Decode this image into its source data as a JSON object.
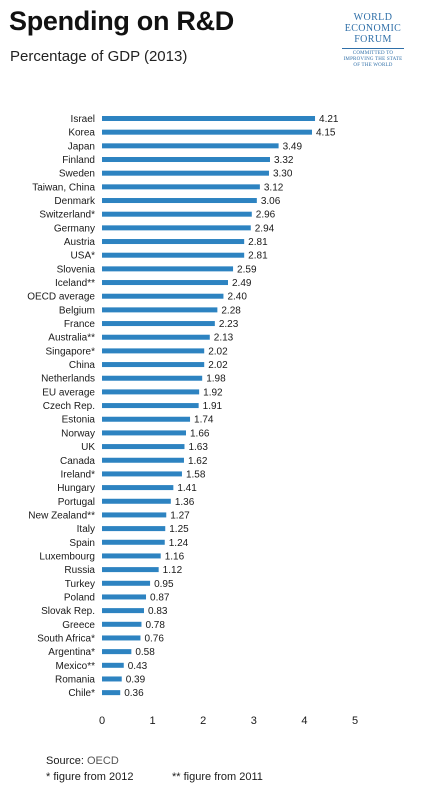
{
  "header": {
    "title": "Spending on R&D",
    "subtitle": "Percentage of GDP (2013)"
  },
  "logo": {
    "line1": "WORLD",
    "line2": "ECONOMIC",
    "line3": "FORUM",
    "tag1": "COMMITTED TO",
    "tag2": "IMPROVING THE STATE",
    "tag3": "OF THE WORLD"
  },
  "colors": {
    "bar": "#2d83c1",
    "text": "#1a1a1a"
  },
  "chart_data": {
    "type": "bar",
    "orientation": "horizontal",
    "title": "Spending on R&D",
    "subtitle": "Percentage of GDP (2013)",
    "xlim": [
      0,
      5
    ],
    "xticks": [
      0,
      1,
      2,
      3,
      4,
      5
    ],
    "grid": false,
    "categories": [
      "Israel",
      "Korea",
      "Japan",
      "Finland",
      "Sweden",
      "Taiwan, China",
      "Denmark",
      "Switzerland*",
      "Germany",
      "Austria",
      "USA*",
      "Slovenia",
      "Iceland**",
      "OECD average",
      "Belgium",
      "France",
      "Australia**",
      "Singapore*",
      "China",
      "Netherlands",
      "EU average",
      "Czech Rep.",
      "Estonia",
      "Norway",
      "UK",
      "Canada",
      "Ireland*",
      "Hungary",
      "Portugal",
      "New Zealand**",
      "Italy",
      "Spain",
      "Luxembourg",
      "Russia",
      "Turkey",
      "Poland",
      "Slovak Rep.",
      "Greece",
      "South Africa*",
      "Argentina*",
      "Mexico**",
      "Romania",
      "Chile*"
    ],
    "values": [
      4.21,
      4.15,
      3.49,
      3.32,
      3.3,
      3.12,
      3.06,
      2.96,
      2.94,
      2.81,
      2.81,
      2.59,
      2.49,
      2.4,
      2.28,
      2.23,
      2.13,
      2.02,
      2.02,
      1.98,
      1.92,
      1.91,
      1.74,
      1.66,
      1.63,
      1.62,
      1.58,
      1.41,
      1.36,
      1.27,
      1.25,
      1.24,
      1.16,
      1.12,
      0.95,
      0.87,
      0.83,
      0.78,
      0.76,
      0.58,
      0.43,
      0.39,
      0.36
    ],
    "value_labels": [
      "4.21",
      "4.15",
      "3.49",
      "3.32",
      "3.30",
      "3.12",
      "3.06",
      "2.96",
      "2.94",
      "2.81",
      "2.81",
      "2.59",
      "2.49",
      "2.40",
      "2.28",
      "2.23",
      "2.13",
      "2.02",
      "2.02",
      "1.98",
      "1.92",
      "1.91",
      "1.74",
      "1.66",
      "1.63",
      "1.62",
      "1.58",
      "1.41",
      "1.36",
      "1.27",
      "1.25",
      "1.24",
      "1.16",
      "1.12",
      "0.95",
      "0.87",
      "0.83",
      "0.78",
      "0.76",
      "0.58",
      "0.43",
      "0.39",
      "0.36"
    ]
  },
  "footer": {
    "source_label": "Source:",
    "source_value": "OECD",
    "note_2012": "* figure from 2012",
    "note_2011": "** figure from 2011"
  }
}
